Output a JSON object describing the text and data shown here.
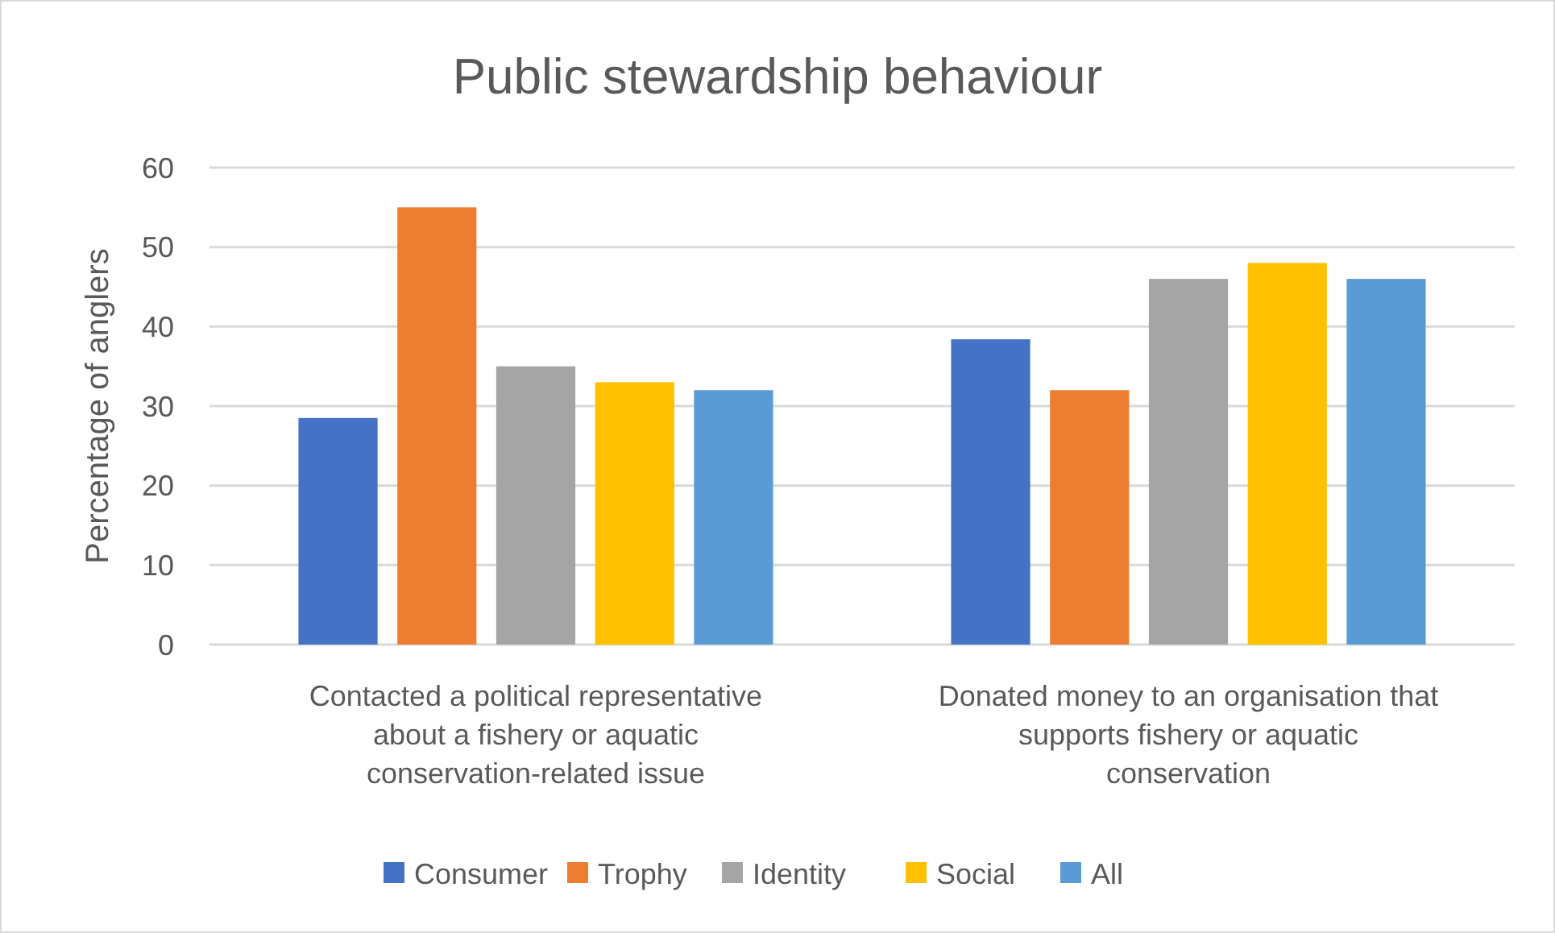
{
  "chart_data": {
    "type": "bar",
    "title": "Public stewardship behaviour",
    "ylabel": "Percentage of anglers",
    "categories": [
      "Contacted a political representative about a fishery or aquatic conservation-related issue",
      "Donated money to an organisation that supports fishery or aquatic conservation"
    ],
    "series": [
      {
        "name": "Consumer",
        "color": "#4472c4",
        "values": [
          28.5,
          38.4
        ]
      },
      {
        "name": "Trophy",
        "color": "#ed7d31",
        "values": [
          55,
          32
        ]
      },
      {
        "name": "Identity",
        "color": "#a5a5a5",
        "values": [
          35,
          46
        ]
      },
      {
        "name": "Social",
        "color": "#ffc000",
        "values": [
          33,
          48
        ]
      },
      {
        "name": "All",
        "color": "#5b9bd5",
        "values": [
          32,
          46
        ]
      }
    ],
    "ylim": [
      0,
      60
    ],
    "yticks": [
      0,
      10,
      20,
      30,
      40,
      50,
      60
    ],
    "grid": "y",
    "legend": "bottom"
  }
}
